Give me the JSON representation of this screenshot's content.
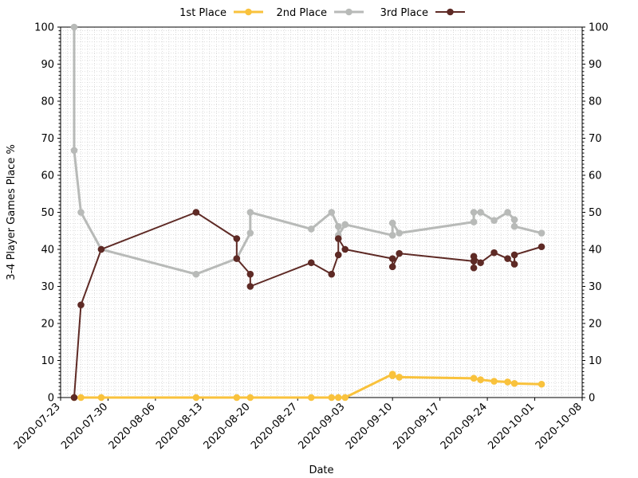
{
  "chart_data": {
    "type": "line",
    "title": "",
    "xlabel": "Date",
    "ylabel": "3-4 Player Games Place %",
    "x_type": "date",
    "xlim": [
      "2020-07-23",
      "2020-10-08"
    ],
    "ylim": [
      0,
      100
    ],
    "x_ticks": [
      "2020-07-23",
      "2020-07-30",
      "2020-08-06",
      "2020-08-13",
      "2020-08-20",
      "2020-08-27",
      "2020-09-03",
      "2020-09-10",
      "2020-09-17",
      "2020-09-24",
      "2020-10-01",
      "2020-10-08"
    ],
    "y_ticks": [
      0,
      10,
      20,
      30,
      40,
      50,
      60,
      70,
      80,
      90,
      100
    ],
    "secondary_y_axis": true,
    "grid": "minor dotted",
    "legend_position": "top-center",
    "series": [
      {
        "name": "1st Place",
        "color": "#f9c23c",
        "points": [
          [
            "2020-07-25",
            0
          ],
          [
            "2020-07-26",
            0
          ],
          [
            "2020-07-29",
            0
          ],
          [
            "2020-08-12",
            0
          ],
          [
            "2020-08-18",
            0
          ],
          [
            "2020-08-20",
            0
          ],
          [
            "2020-08-29",
            0
          ],
          [
            "2020-09-01",
            0
          ],
          [
            "2020-09-02",
            0
          ],
          [
            "2020-09-03",
            0
          ],
          [
            "2020-09-10",
            6.3
          ],
          [
            "2020-09-10",
            5.9
          ],
          [
            "2020-09-11",
            5.5
          ],
          [
            "2020-09-22",
            5.2
          ],
          [
            "2020-09-23",
            4.8
          ],
          [
            "2020-09-25",
            4.4
          ],
          [
            "2020-09-27",
            4.2
          ],
          [
            "2020-09-28",
            3.8
          ],
          [
            "2020-10-02",
            3.6
          ]
        ]
      },
      {
        "name": "2nd Place",
        "color": "#b8bab8",
        "points": [
          [
            "2020-07-25",
            100
          ],
          [
            "2020-07-25",
            66.7
          ],
          [
            "2020-07-26",
            50
          ],
          [
            "2020-07-29",
            40
          ],
          [
            "2020-08-12",
            33.3
          ],
          [
            "2020-08-18",
            37.5
          ],
          [
            "2020-08-20",
            44.4
          ],
          [
            "2020-08-20",
            50
          ],
          [
            "2020-08-29",
            45.5
          ],
          [
            "2020-09-01",
            50
          ],
          [
            "2020-09-02",
            46.2
          ],
          [
            "2020-09-02",
            43.8
          ],
          [
            "2020-09-03",
            46.7
          ],
          [
            "2020-09-10",
            43.8
          ],
          [
            "2020-09-10",
            47.1
          ],
          [
            "2020-09-11",
            44.4
          ],
          [
            "2020-09-22",
            47.4
          ],
          [
            "2020-09-22",
            50
          ],
          [
            "2020-09-23",
            50
          ],
          [
            "2020-09-25",
            47.8
          ],
          [
            "2020-09-27",
            50
          ],
          [
            "2020-09-28",
            48
          ],
          [
            "2020-09-28",
            46.2
          ],
          [
            "2020-10-02",
            44.4
          ]
        ]
      },
      {
        "name": "3rd Place",
        "color": "#5e2a25",
        "points": [
          [
            "2020-07-25",
            0
          ],
          [
            "2020-07-26",
            25
          ],
          [
            "2020-07-29",
            40
          ],
          [
            "2020-08-12",
            50
          ],
          [
            "2020-08-18",
            42.9
          ],
          [
            "2020-08-18",
            37.5
          ],
          [
            "2020-08-20",
            33.3
          ],
          [
            "2020-08-20",
            30
          ],
          [
            "2020-08-29",
            36.4
          ],
          [
            "2020-09-01",
            33.3
          ],
          [
            "2020-09-02",
            38.5
          ],
          [
            "2020-09-02",
            42.9
          ],
          [
            "2020-09-03",
            40
          ],
          [
            "2020-09-10",
            37.5
          ],
          [
            "2020-09-10",
            35.3
          ],
          [
            "2020-09-11",
            38.9
          ],
          [
            "2020-09-22",
            36.8
          ],
          [
            "2020-09-22",
            35
          ],
          [
            "2020-09-22",
            38.1
          ],
          [
            "2020-09-23",
            36.4
          ],
          [
            "2020-09-25",
            39.1
          ],
          [
            "2020-09-27",
            37.5
          ],
          [
            "2020-09-28",
            36
          ],
          [
            "2020-09-28",
            38.5
          ],
          [
            "2020-10-02",
            40.7
          ]
        ]
      }
    ]
  }
}
